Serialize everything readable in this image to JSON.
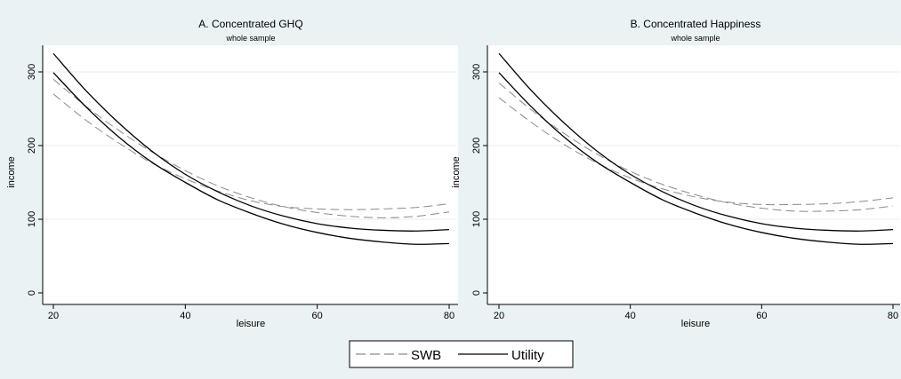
{
  "colors": {
    "background": "#eaf2f3",
    "plot_region": "#ffffff",
    "grid": "#e8eeee",
    "swb_line": "#8a8a8a",
    "utility_line": "#000000"
  },
  "legend": {
    "placement": "bottom-center",
    "items": [
      {
        "label": "SWB",
        "style": "dashed"
      },
      {
        "label": "Utility",
        "style": "solid"
      }
    ]
  },
  "chart_data": [
    {
      "type": "line",
      "title": "A. Concentrated GHQ",
      "subtitle": "whole sample",
      "xlabel": "leisure",
      "ylabel": "income",
      "xlim": [
        20,
        80
      ],
      "ylim": [
        0,
        320
      ],
      "xticks": [
        "20",
        "40",
        "60",
        "80"
      ],
      "yticks": [
        "0",
        "100",
        "200",
        "300"
      ],
      "grid": true,
      "x": [
        20,
        25,
        30,
        35,
        40,
        45,
        50,
        55,
        60,
        65,
        70,
        75,
        80
      ],
      "series": [
        {
          "name": "SWB",
          "style": "dashed",
          "values": [
            290,
            253,
            220,
            191,
            166,
            145,
            129,
            117,
            109,
            104,
            102,
            104,
            110
          ]
        },
        {
          "name": "SWB",
          "style": "dashed",
          "values": [
            270,
            234,
            203,
            176,
            155,
            138,
            125,
            117,
            114,
            113,
            114,
            116,
            121
          ]
        },
        {
          "name": "Utility",
          "style": "solid",
          "values": [
            325,
            274,
            230,
            192,
            161,
            137,
            118,
            104,
            94,
            88,
            85,
            84,
            86
          ]
        },
        {
          "name": "Utility",
          "style": "solid",
          "values": [
            299,
            252,
            211,
            177,
            150,
            126,
            108,
            93,
            82,
            74,
            69,
            66,
            67
          ]
        }
      ]
    },
    {
      "type": "line",
      "title": "B. Concentrated Happiness",
      "subtitle": "whole sample",
      "xlabel": "leisure",
      "ylabel": "income",
      "xlim": [
        20,
        80
      ],
      "ylim": [
        0,
        320
      ],
      "xticks": [
        "20",
        "40",
        "60",
        "80"
      ],
      "yticks": [
        "0",
        "100",
        "200",
        "300"
      ],
      "grid": true,
      "x": [
        20,
        25,
        30,
        35,
        40,
        45,
        50,
        55,
        60,
        65,
        70,
        75,
        80
      ],
      "series": [
        {
          "name": "SWB",
          "style": "dashed",
          "values": [
            285,
            248,
            216,
            188,
            165,
            147,
            133,
            122,
            115,
            111,
            111,
            113,
            118
          ]
        },
        {
          "name": "SWB",
          "style": "dashed",
          "values": [
            265,
            231,
            201,
            176,
            156,
            141,
            130,
            123,
            120,
            120,
            121,
            124,
            129
          ]
        },
        {
          "name": "Utility",
          "style": "solid",
          "values": [
            325,
            274,
            230,
            192,
            161,
            137,
            118,
            104,
            94,
            88,
            85,
            84,
            86
          ]
        },
        {
          "name": "Utility",
          "style": "solid",
          "values": [
            299,
            252,
            211,
            177,
            150,
            126,
            108,
            93,
            82,
            74,
            69,
            66,
            67
          ]
        }
      ]
    }
  ]
}
